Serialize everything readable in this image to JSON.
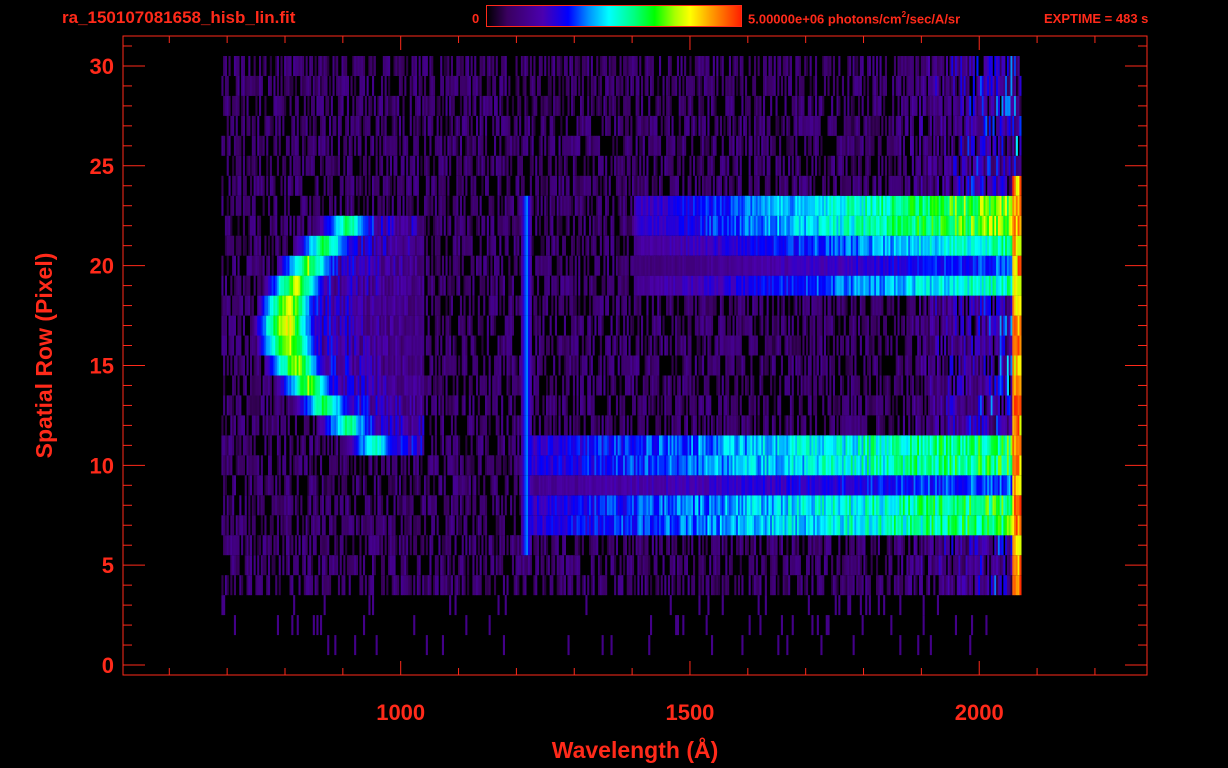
{
  "header": {
    "filename": "ra_150107081658_hisb_lin.fit",
    "colorbar_min": "0",
    "colorbar_max_prefix": "5.00000e+06 photons/cm",
    "colorbar_max_sup": "2",
    "colorbar_max_suffix": "/sec/A/sr",
    "exptime": "EXPTIME = 483 s"
  },
  "colors": {
    "axis": "#ff2a1a",
    "background": "#000000"
  },
  "chart_data": {
    "type": "heatmap",
    "title": "ra_150107081658_hisb_lin.fit",
    "xlabel": "Wavelength (Å)",
    "ylabel": "Spatial Row (Pixel)",
    "xlim": [
      520,
      2290
    ],
    "ylim": [
      -0.5,
      31.5
    ],
    "xticks": [
      1000,
      1500,
      2000
    ],
    "yticks": [
      0,
      5,
      10,
      15,
      20,
      25,
      30
    ],
    "colorscale": {
      "min": 0,
      "max": 5000000,
      "units": "photons/cm^2/sec/A/sr",
      "scale": "linear"
    },
    "rows": 30,
    "wavelength_range": [
      690,
      2070
    ],
    "features": [
      {
        "kind": "vertical-line",
        "x": 1216,
        "rows": [
          6,
          23
        ],
        "intensity": 0.42
      },
      {
        "kind": "upper-band",
        "x": [
          1400,
          2065
        ],
        "rows": [
          19,
          23
        ],
        "intensity_range": [
          0.25,
          0.82
        ]
      },
      {
        "kind": "lower-band",
        "x": [
          1220,
          2060
        ],
        "rows": [
          7,
          11
        ],
        "intensity_range": [
          0.3,
          0.72
        ]
      },
      {
        "kind": "arc",
        "center_x": 900,
        "center_row": 17,
        "rows": [
          11,
          22
        ],
        "peak_x": 800,
        "intensity": 0.9
      },
      {
        "kind": "noise-background",
        "x": [
          690,
          2070
        ],
        "rows": [
          4,
          30
        ],
        "intensity": 0.12
      }
    ]
  }
}
